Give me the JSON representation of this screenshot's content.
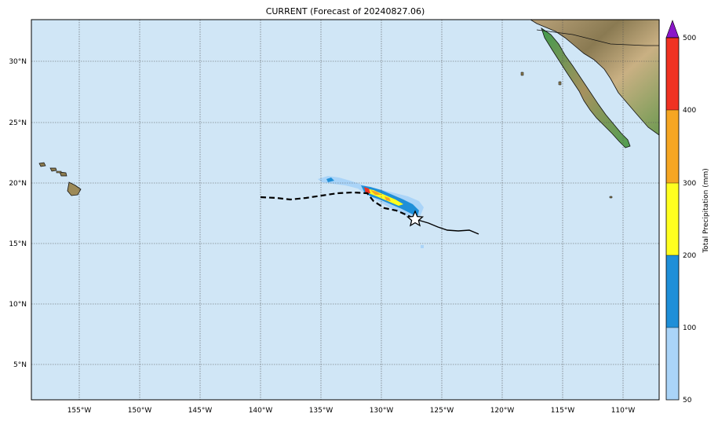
{
  "title": "CURRENT (Forecast of 20240827.06)",
  "map": {
    "ocean_color": "#d0e6f6",
    "lat_labels": [
      "30°N",
      "25°N",
      "20°N",
      "15°N",
      "10°N",
      "5°N"
    ],
    "lon_labels": [
      "155°W",
      "150°W",
      "145°W",
      "140°W",
      "135°W",
      "130°W",
      "125°W",
      "120°W",
      "115°W",
      "110°W"
    ],
    "gridlines": "dotted",
    "forecast_track": "dashed black line",
    "observed_track": "solid black line",
    "storm_marker": "star-icon"
  },
  "colorbar": {
    "label": "Total Precipitation (mm)",
    "ticks": [
      "50",
      "100",
      "200",
      "300",
      "400",
      "500"
    ],
    "colors": [
      "#aad4f8",
      "#1f8fd8",
      "#ffff20",
      "#f6a623",
      "#f03222"
    ],
    "extend_color": "#8a16c8"
  }
}
